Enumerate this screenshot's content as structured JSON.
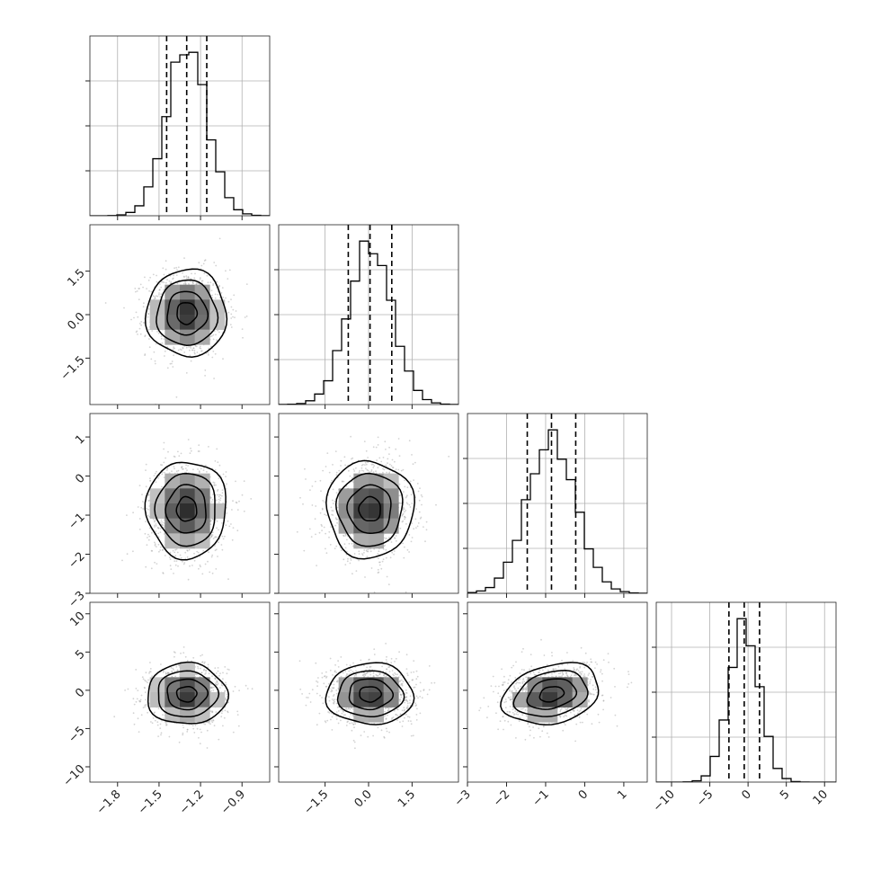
{
  "chart_data": {
    "type": "corner",
    "grid": true,
    "quantiles": [
      0.16,
      0.5,
      0.84
    ],
    "parameters": [
      {
        "range": [
          -2.0,
          -0.7
        ],
        "ticks": [
          -1.8,
          -1.5,
          -1.2,
          -0.9
        ],
        "tick_labels": [
          "−1.8",
          "−1.5",
          "−1.2",
          "−0.9"
        ],
        "mean": -1.3,
        "sd": 0.145,
        "quantile_values": [
          -1.445,
          -1.3,
          -1.155
        ]
      },
      {
        "range": [
          -3.1,
          3.1
        ],
        "ticks": [
          -1.5,
          0.0,
          1.5
        ],
        "tick_labels": [
          "−1.5",
          "0.0",
          "1.5"
        ],
        "mean": 0.05,
        "sd": 0.75,
        "quantile_values": [
          -0.7,
          0.05,
          0.8
        ]
      },
      {
        "range": [
          -3.0,
          1.6
        ],
        "ticks": [
          -3,
          -2,
          -1,
          0,
          1
        ],
        "tick_labels": [
          "−3",
          "−2",
          "−1",
          "0",
          "1"
        ],
        "mean": -0.85,
        "sd": 0.62,
        "quantile_values": [
          -1.47,
          -0.85,
          -0.23
        ]
      },
      {
        "range": [
          -12.0,
          11.5
        ],
        "ticks": [
          -10,
          -5,
          0,
          5,
          10
        ],
        "tick_labels": [
          "−10",
          "−5",
          "0",
          "5",
          "10"
        ],
        "mean": -0.5,
        "sd": 2.0,
        "quantile_values": [
          -2.5,
          -0.5,
          1.5
        ]
      }
    ],
    "panels": [
      {
        "row": 0,
        "col": 0,
        "kind": "hist"
      },
      {
        "row": 1,
        "col": 0,
        "kind": "density"
      },
      {
        "row": 1,
        "col": 1,
        "kind": "hist"
      },
      {
        "row": 2,
        "col": 0,
        "kind": "density"
      },
      {
        "row": 2,
        "col": 1,
        "kind": "density"
      },
      {
        "row": 2,
        "col": 2,
        "kind": "hist"
      },
      {
        "row": 3,
        "col": 0,
        "kind": "density"
      },
      {
        "row": 3,
        "col": 1,
        "kind": "density"
      },
      {
        "row": 3,
        "col": 2,
        "kind": "density",
        "correlation": 0.25
      },
      {
        "row": 3,
        "col": 3,
        "kind": "hist"
      }
    ],
    "contour_levels_sigma": [
      0.5,
      1.0,
      1.5,
      2.0
    ],
    "colors": {
      "line": "#000000",
      "grid": "#b0b0b0",
      "points": "#9e9e9e",
      "frame": "#222222"
    }
  }
}
